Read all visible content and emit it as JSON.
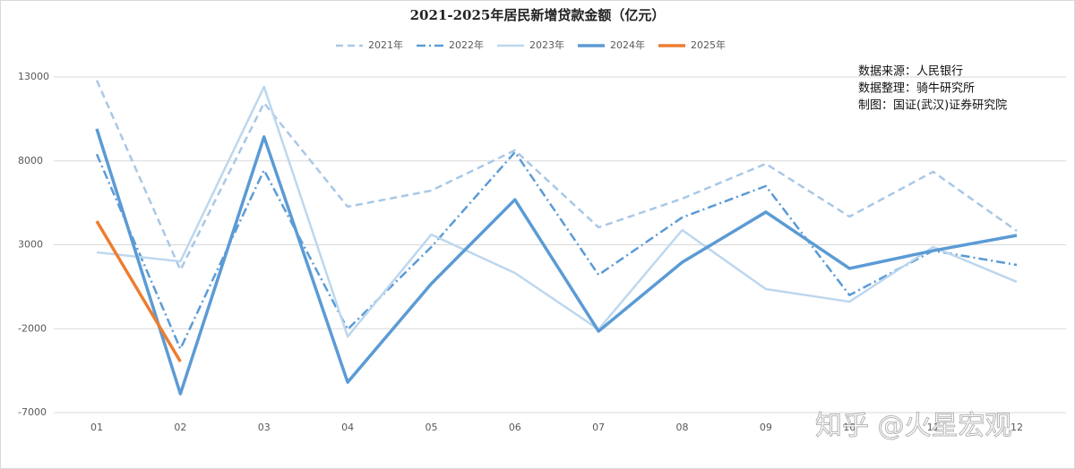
{
  "chart_data": {
    "type": "line",
    "title": "2021-2025年居民新增贷款金额（亿元）",
    "categories": [
      "01",
      "02",
      "03",
      "04",
      "05",
      "06",
      "07",
      "08",
      "09",
      "10",
      "11",
      "12"
    ],
    "series": [
      {
        "name": "2021年",
        "color": "#a9c8e6",
        "style": "dashed",
        "values": [
          12800,
          1500,
          11450,
          5270,
          6230,
          8630,
          4040,
          5750,
          7830,
          4680,
          7350,
          3830
        ]
      },
      {
        "name": "2022年",
        "color": "#5b9bd5",
        "style": "dashdot",
        "values": [
          8400,
          -3200,
          7450,
          -2040,
          2870,
          8520,
          1210,
          4630,
          6500,
          0,
          2650,
          1800
        ]
      },
      {
        "name": "2023年",
        "color": "#bdd7ee",
        "style": "solid",
        "values": [
          2550,
          2010,
          12410,
          -2470,
          3610,
          1320,
          -2040,
          3880,
          360,
          -390,
          2870,
          790
        ]
      },
      {
        "name": "2024年",
        "color": "#5b9bd5",
        "style": "bold",
        "values": [
          9910,
          -5880,
          9430,
          -5190,
          680,
          5690,
          -2150,
          1960,
          4950,
          1590,
          2650,
          3560
        ]
      },
      {
        "name": "2025年",
        "color": "#ed7d31",
        "style": "bold",
        "values": [
          4410,
          -3960,
          null,
          null,
          null,
          null,
          null,
          null,
          null,
          null,
          null,
          null
        ]
      }
    ],
    "ylim": [
      -7000,
      13000
    ],
    "yticks": [
      -7000,
      -2000,
      3000,
      8000,
      13000
    ],
    "grid": true,
    "legend": "top",
    "annotations": [
      "数据来源：人民银行",
      "数据整理：骑牛研究所",
      "制图：国证(武汉)证券研究院"
    ],
    "watermark": "知乎 @火星宏观"
  }
}
